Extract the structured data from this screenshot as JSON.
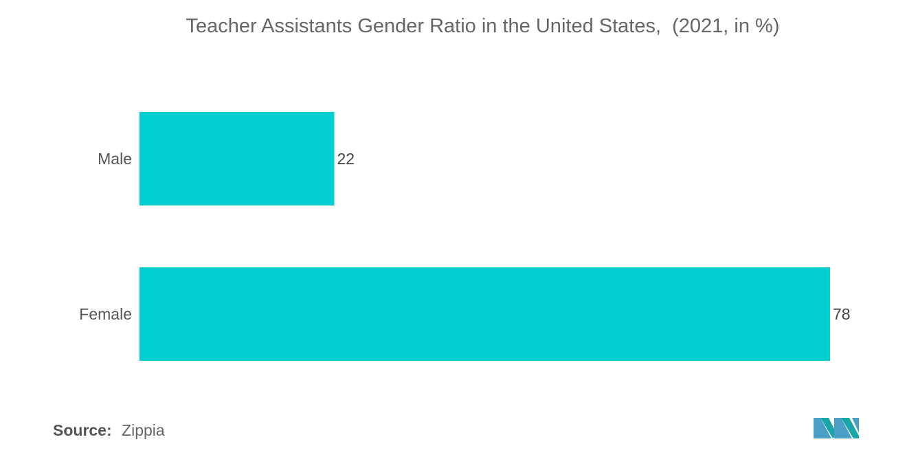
{
  "chart_data": {
    "type": "bar",
    "orientation": "horizontal",
    "title": "Teacher Assistants Gender Ratio in the United States,  (2021, in %)",
    "categories": [
      "Male",
      "Female"
    ],
    "values": [
      22,
      78
    ],
    "xlim": [
      0,
      78
    ],
    "grid": false,
    "bar_color": "#00ced1"
  },
  "source": {
    "label": "Source:",
    "value": "Zippia"
  },
  "logo": {
    "icon": "mordor-intelligence-logo-icon",
    "colors": [
      "#4a9fc6",
      "#1aa5a8"
    ]
  }
}
